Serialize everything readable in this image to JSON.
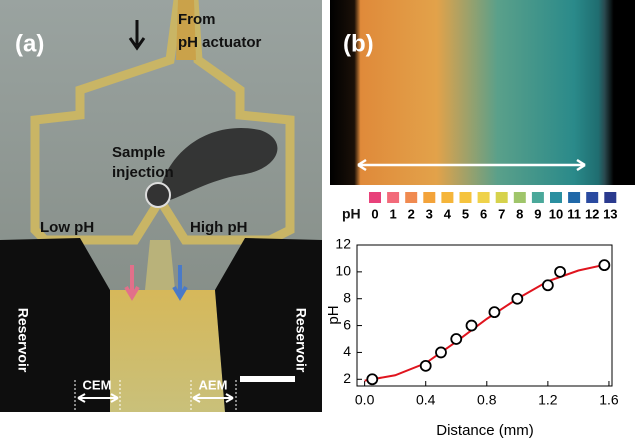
{
  "panel_a": {
    "tag": "(a)",
    "from": "From",
    "actuator": "pH actuator",
    "sample": "Sample",
    "injection": "injection",
    "low": "Low pH",
    "high": "High pH",
    "reservoir_left": "Reservoir",
    "reservoir_right": "Reservoir",
    "cem": "CEM",
    "aem": "AEM"
  },
  "panel_b": {
    "tag": "(b)"
  },
  "ph_scale": {
    "label": "pH",
    "levels": [
      "0",
      "1",
      "2",
      "3",
      "4",
      "5",
      "6",
      "7",
      "8",
      "9",
      "10",
      "11",
      "12",
      "13"
    ],
    "colors": [
      "#e8417a",
      "#f26a7a",
      "#f08a50",
      "#f3a33a",
      "#f5b53a",
      "#f5c33e",
      "#efd24a",
      "#d6d24c",
      "#9fc56a",
      "#4aa89a",
      "#2a8fa0",
      "#2068a8",
      "#2a4aa0",
      "#2a3a8e"
    ]
  },
  "chart_data": {
    "type": "scatter",
    "x_label": "Distance (mm)",
    "y_label": "pH",
    "xlim": [
      -0.05,
      1.62
    ],
    "ylim": [
      1.5,
      12
    ],
    "xticks": [
      {
        "value": 0,
        "label": "0.0"
      },
      0.4,
      0.8,
      1.2,
      1.6
    ],
    "yticks": [
      2,
      4,
      6,
      8,
      10,
      12
    ],
    "series": [
      {
        "style": "line",
        "color": "#e0141e",
        "x": [
          0,
          0.2,
          0.4,
          0.6,
          0.8,
          1.0,
          1.2,
          1.4,
          1.6
        ],
        "values": [
          1.9,
          2.3,
          3.2,
          4.8,
          6.5,
          8.0,
          9.3,
          10.1,
          10.6
        ]
      },
      {
        "style": "marker",
        "color": "#000000",
        "x": [
          0.05,
          0.4,
          0.5,
          0.6,
          0.7,
          0.85,
          1.0,
          1.2,
          1.28,
          1.57
        ],
        "values": [
          2,
          3,
          4,
          5,
          6,
          7,
          8,
          9,
          10,
          10.5
        ]
      }
    ]
  }
}
